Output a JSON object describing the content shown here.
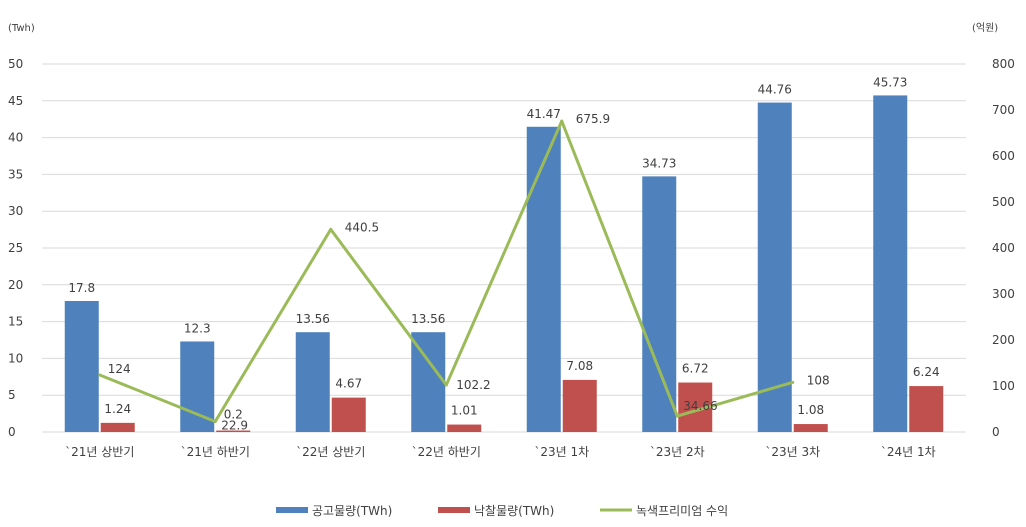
{
  "chart_data": {
    "type": "bar",
    "categories": [
      "`21년 상반기",
      "`21년 하반기",
      "`22년 상반기",
      "`22년 하반기",
      "`23년 1차",
      "`23년 2차",
      "`23년 3차",
      "`24년 1차"
    ],
    "series": [
      {
        "name": "공고물량(TWh)",
        "type": "bar",
        "axis": "left",
        "color": "#4f81bd",
        "values": [
          17.8,
          12.3,
          13.56,
          13.56,
          41.47,
          34.73,
          44.76,
          45.73
        ],
        "labels": [
          "17.8",
          "12.3",
          "13.56",
          "13.56",
          "41.47",
          "34.73",
          "44.76",
          "45.73"
        ]
      },
      {
        "name": "낙찰물량(TWh)",
        "type": "bar",
        "axis": "left",
        "color": "#c0504d",
        "values": [
          1.24,
          0.2,
          4.67,
          1.01,
          7.08,
          6.72,
          1.08,
          6.24
        ],
        "labels": [
          "1.24",
          "0.2",
          "4.67",
          "1.01",
          "7.08",
          "6.72",
          "1.08",
          "6.24"
        ]
      },
      {
        "name": "녹색프리미엄 수익",
        "type": "line",
        "axis": "right",
        "color": "#9bbb59",
        "values": [
          124,
          22.9,
          440.5,
          102.2,
          675.9,
          34.66,
          108,
          null
        ],
        "labels": [
          "124",
          "22.9",
          "440.5",
          "102.2",
          "675.9",
          "34.66",
          "108",
          ""
        ]
      }
    ],
    "left_axis": {
      "unit": "(Twh)",
      "ylim": [
        0,
        50
      ],
      "ticks": [
        "0",
        "5",
        "10",
        "15",
        "20",
        "25",
        "30",
        "35",
        "40",
        "45",
        "50"
      ]
    },
    "right_axis": {
      "unit": "(억원)",
      "ylim": [
        0,
        800
      ],
      "ticks": [
        "0",
        "100",
        "200",
        "300",
        "400",
        "500",
        "600",
        "700",
        "800"
      ]
    },
    "grid": true,
    "legend_position": "bottom"
  }
}
